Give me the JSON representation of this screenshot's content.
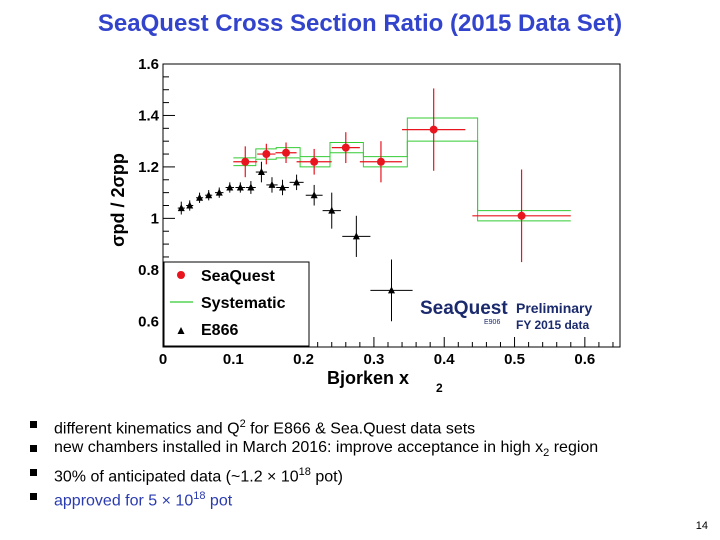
{
  "slide": {
    "title": "SeaQuest Cross Section Ratio (2015 Data Set)",
    "page_number": "14"
  },
  "bullets": [
    {
      "t1": "different kinematics and Q",
      "sup": "2",
      "t2": " for E866 & Sea.Quest data sets",
      "blue": false
    },
    {
      "t1": "new chambers installed in March 2016: improve acceptance in high x",
      "sub": "2",
      "t2": " region",
      "blue": false
    },
    {
      "t1": "30% of anticipated data  (~1.2 × 10",
      "sup": "18",
      "t2": " pot)",
      "blue": false
    },
    {
      "t1": "approved for  5 × 10",
      "sup": "18",
      "t2": " pot",
      "blue": true
    }
  ],
  "logo": {
    "brand": "SeaQuest",
    "sub": "E906",
    "preliminary": "Preliminary",
    "dataset": "FY 2015 data"
  },
  "colors": {
    "title": "#3344cc",
    "seaquest": "#e8141e",
    "systematic": "#33cc33",
    "e866": "#000000"
  },
  "chart_data": {
    "type": "scatter",
    "xlabel": "Bjorken x",
    "xlabel_sub": "2",
    "ylabel": "σpd / 2σpp",
    "xlim": [
      0,
      0.65
    ],
    "ylim": [
      0.5,
      1.6
    ],
    "x_ticks": [
      "0",
      "0.1",
      "0.2",
      "0.3",
      "0.4",
      "0.5",
      "0.6"
    ],
    "y_ticks": [
      "0.6",
      "0.8",
      "1",
      "1.2",
      "1.4",
      "1.6"
    ],
    "legend_placement": "bottom-left",
    "series": [
      {
        "name": "SeaQuest",
        "marker": "circle",
        "points": [
          {
            "x": 0.117,
            "y": 1.22,
            "xerr": 0.017,
            "yerr": 0.06
          },
          {
            "x": 0.147,
            "y": 1.25,
            "xerr": 0.013,
            "yerr": 0.04
          },
          {
            "x": 0.175,
            "y": 1.255,
            "xerr": 0.015,
            "yerr": 0.04
          },
          {
            "x": 0.215,
            "y": 1.22,
            "xerr": 0.025,
            "yerr": 0.05
          },
          {
            "x": 0.26,
            "y": 1.275,
            "xerr": 0.02,
            "yerr": 0.06
          },
          {
            "x": 0.31,
            "y": 1.22,
            "xerr": 0.03,
            "yerr": 0.08
          },
          {
            "x": 0.385,
            "y": 1.345,
            "xerr": 0.045,
            "yerr": 0.16
          },
          {
            "x": 0.51,
            "y": 1.01,
            "xerr": 0.07,
            "yerr": 0.18
          }
        ]
      },
      {
        "name": "Systematic",
        "marker": "band",
        "points": [
          {
            "x": 0.117,
            "low": 1.205,
            "high": 1.235
          },
          {
            "x": 0.147,
            "low": 1.23,
            "high": 1.27
          },
          {
            "x": 0.175,
            "low": 1.235,
            "high": 1.275
          },
          {
            "x": 0.215,
            "low": 1.2,
            "high": 1.24
          },
          {
            "x": 0.26,
            "low": 1.255,
            "high": 1.295
          },
          {
            "x": 0.31,
            "low": 1.2,
            "high": 1.24
          },
          {
            "x": 0.385,
            "low": 1.3,
            "high": 1.39
          },
          {
            "x": 0.51,
            "low": 0.99,
            "high": 1.03
          }
        ],
        "band_xlim": [
          0.1,
          0.58
        ]
      },
      {
        "name": "E866",
        "marker": "triangle",
        "points": [
          {
            "x": 0.026,
            "y": 1.04,
            "xerr": 0.005,
            "yerr": 0.025
          },
          {
            "x": 0.038,
            "y": 1.05,
            "xerr": 0.005,
            "yerr": 0.02
          },
          {
            "x": 0.052,
            "y": 1.08,
            "xerr": 0.005,
            "yerr": 0.02
          },
          {
            "x": 0.065,
            "y": 1.09,
            "xerr": 0.005,
            "yerr": 0.02
          },
          {
            "x": 0.08,
            "y": 1.1,
            "xerr": 0.006,
            "yerr": 0.02
          },
          {
            "x": 0.095,
            "y": 1.12,
            "xerr": 0.006,
            "yerr": 0.02
          },
          {
            "x": 0.11,
            "y": 1.12,
            "xerr": 0.007,
            "yerr": 0.02
          },
          {
            "x": 0.125,
            "y": 1.12,
            "xerr": 0.007,
            "yerr": 0.025
          },
          {
            "x": 0.14,
            "y": 1.18,
            "xerr": 0.008,
            "yerr": 0.04
          },
          {
            "x": 0.155,
            "y": 1.13,
            "xerr": 0.008,
            "yerr": 0.03
          },
          {
            "x": 0.17,
            "y": 1.12,
            "xerr": 0.009,
            "yerr": 0.03
          },
          {
            "x": 0.19,
            "y": 1.14,
            "xerr": 0.01,
            "yerr": 0.03
          },
          {
            "x": 0.215,
            "y": 1.09,
            "xerr": 0.012,
            "yerr": 0.04
          },
          {
            "x": 0.24,
            "y": 1.03,
            "xerr": 0.013,
            "yerr": 0.07
          },
          {
            "x": 0.275,
            "y": 0.93,
            "xerr": 0.02,
            "yerr": 0.08
          },
          {
            "x": 0.325,
            "y": 0.72,
            "xerr": 0.03,
            "yerr": 0.12
          }
        ]
      }
    ]
  }
}
